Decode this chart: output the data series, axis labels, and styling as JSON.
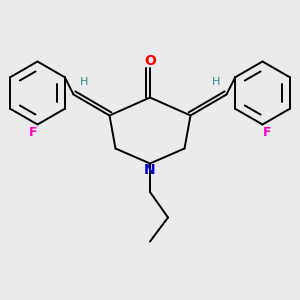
{
  "bg_color": "#ebebeb",
  "bond_color": "#000000",
  "bond_width": 1.4,
  "N_color": "#0000cc",
  "O_color": "#ff0000",
  "F_color": "#ff00cc",
  "H_color": "#2e8b8b",
  "fig_width": 3.0,
  "fig_height": 3.0,
  "dpi": 100,
  "xlim": [
    0,
    10
  ],
  "ylim": [
    0,
    10
  ]
}
